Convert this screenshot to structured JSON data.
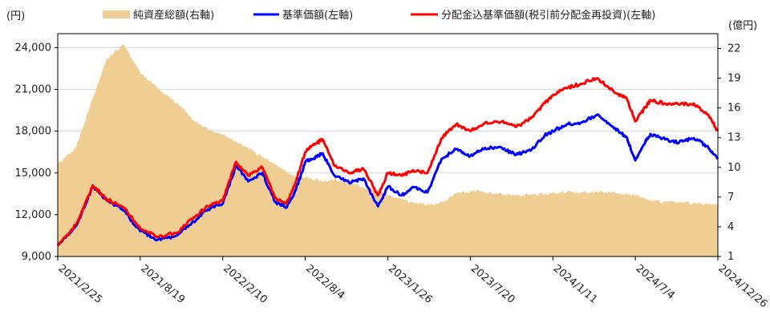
{
  "chart_data": {
    "type": "line",
    "title": "",
    "left_axis_unit": "(円)",
    "right_axis_unit": "(億円)",
    "left_axis": {
      "min": 9000,
      "max": 25000,
      "ticks": [
        {
          "v": 9000,
          "label": "9,000"
        },
        {
          "v": 12000,
          "label": "12,000"
        },
        {
          "v": 15000,
          "label": "15,000"
        },
        {
          "v": 18000,
          "label": "18,000"
        },
        {
          "v": 21000,
          "label": "21,000"
        },
        {
          "v": 24000,
          "label": "24,000"
        }
      ]
    },
    "right_axis": {
      "min": 1,
      "max": 23.5,
      "ticks": [
        {
          "v": 1,
          "label": "1"
        },
        {
          "v": 4,
          "label": "4"
        },
        {
          "v": 7,
          "label": "7"
        },
        {
          "v": 10,
          "label": "10"
        },
        {
          "v": 13,
          "label": "13"
        },
        {
          "v": 16,
          "label": "16"
        },
        {
          "v": 19,
          "label": "19"
        },
        {
          "v": 22,
          "label": "22"
        }
      ]
    },
    "x_ticks": [
      "2021/2/25",
      "2021/8/19",
      "2022/2/10",
      "2022/8/4",
      "2023/1/26",
      "2023/7/20",
      "2024/1/11",
      "2024/7/4",
      "2024/12/26"
    ],
    "legend": {
      "position": "top",
      "items": [
        {
          "label": "純資産総額(右軸)",
          "color": "#f0cd92",
          "kind": "area"
        },
        {
          "label": "基準価額(左軸)",
          "color": "#0000ff",
          "kind": "line"
        },
        {
          "label": "分配金込基準価額(税引前分配金再投資)(左軸)",
          "color": "#ff0000",
          "kind": "line"
        }
      ]
    },
    "x": [
      "2021/2/25",
      "2021/4/5",
      "2021/5/10",
      "2021/6/10",
      "2021/7/15",
      "2021/8/19",
      "2021/9/25",
      "2021/11/5",
      "2021/12/10",
      "2022/1/10",
      "2022/2/10",
      "2022/3/10",
      "2022/4/5",
      "2022/5/5",
      "2022/6/1",
      "2022/6/25",
      "2022/7/15",
      "2022/8/4",
      "2022/8/20",
      "2022/9/10",
      "2022/10/5",
      "2022/11/5",
      "2022/12/5",
      "2023/1/5",
      "2023/1/26",
      "2023/2/25",
      "2023/3/20",
      "2023/4/20",
      "2023/5/20",
      "2023/6/20",
      "2023/7/20",
      "2023/8/20",
      "2023/9/25",
      "2023/10/25",
      "2023/11/25",
      "2023/12/25",
      "2024/1/11",
      "2024/2/10",
      "2024/3/10",
      "2024/4/15",
      "2024/5/20",
      "2024/6/15",
      "2024/7/4",
      "2024/7/25",
      "2024/8/5",
      "2024/9/5",
      "2024/10/5",
      "2024/11/5",
      "2024/12/5",
      "2024/12/26"
    ],
    "series": [
      {
        "name": "純資産総額(右軸)",
        "axis": "right",
        "style": "area",
        "color": "#f0cd92",
        "values": [
          10.3,
          12.0,
          17.0,
          21.0,
          22.4,
          19.5,
          18.0,
          16.5,
          14.8,
          13.8,
          13.3,
          12.6,
          12.0,
          11.0,
          10.3,
          9.5,
          9.0,
          9.0,
          8.8,
          8.6,
          8.8,
          8.5,
          8.0,
          7.6,
          7.1,
          6.8,
          6.5,
          6.2,
          6.5,
          7.3,
          7.6,
          7.5,
          7.3,
          7.2,
          7.2,
          7.3,
          7.4,
          7.5,
          7.4,
          7.5,
          7.5,
          7.3,
          7.2,
          6.9,
          6.6,
          6.5,
          6.5,
          6.4,
          6.3,
          6.2
        ]
      },
      {
        "name": "基準価額(左軸)",
        "axis": "left",
        "style": "line",
        "color": "#0000ff",
        "values": [
          9800,
          11200,
          14000,
          13000,
          12300,
          10800,
          10200,
          10500,
          11500,
          12400,
          12800,
          15500,
          14400,
          15000,
          12900,
          12500,
          13800,
          15800,
          16000,
          16400,
          14800,
          14300,
          14600,
          12600,
          14000,
          13400,
          14000,
          13600,
          16000,
          16700,
          16200,
          16800,
          16800,
          16300,
          16600,
          17700,
          18000,
          18500,
          18600,
          19200,
          18200,
          17600,
          15900,
          17200,
          17800,
          17400,
          17200,
          17500,
          16900,
          16000
        ]
      },
      {
        "name": "分配金込基準価額(税引前分配金再投資)(左軸)",
        "axis": "left",
        "style": "line",
        "color": "#ff0000",
        "values": [
          9800,
          11300,
          14100,
          13100,
          12500,
          11000,
          10400,
          10700,
          11800,
          12600,
          13000,
          15800,
          14800,
          15400,
          13200,
          12800,
          14400,
          16500,
          17000,
          17400,
          15500,
          15000,
          15300,
          13400,
          15000,
          14800,
          15200,
          15000,
          17500,
          18500,
          18000,
          18600,
          18700,
          18300,
          18900,
          20000,
          20600,
          21100,
          21400,
          21800,
          20800,
          20400,
          18700,
          19700,
          20200,
          20000,
          19900,
          20000,
          19200,
          18000
        ]
      }
    ]
  }
}
